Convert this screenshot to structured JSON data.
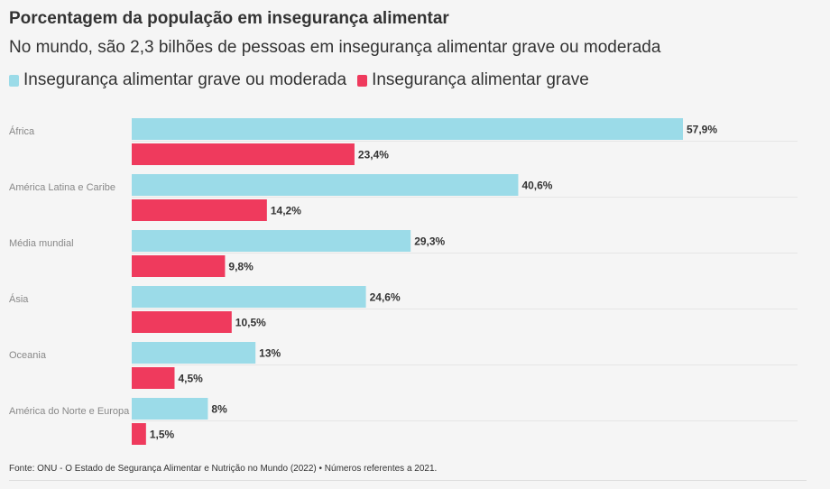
{
  "title": "Porcentagem da população em insegurança alimentar",
  "subtitle": "No mundo, são 2,3 bilhões de pessoas em insegurança alimentar grave ou moderada",
  "footer": "Fonte: ONU - O Estado de Segurança Alimentar e Nutrição no Mundo (2022) • Números referentes a 2021.",
  "colors": {
    "moderate": "#9bdbe8",
    "severe": "#ef3a5d"
  },
  "chart_data": {
    "type": "bar",
    "orientation": "horizontal",
    "title": "Porcentagem da população em insegurança alimentar",
    "subtitle": "No mundo, são 2,3 bilhões de pessoas em insegurança alimentar grave ou moderada",
    "legend_position": "top-left",
    "grid": false,
    "xlim": [
      0,
      57.9
    ],
    "categories": [
      "África",
      "América Latina e Caribe",
      "Média mundial",
      "Ásia",
      "Oceania",
      "América do Norte e Europa"
    ],
    "series": [
      {
        "name": "Insegurança alimentar grave ou moderada",
        "color": "#9bdbe8",
        "values": [
          57.9,
          40.6,
          29.3,
          24.6,
          13,
          8
        ],
        "labels": [
          "57,9%",
          "40,6%",
          "29,3%",
          "24,6%",
          "13%",
          "8%"
        ]
      },
      {
        "name": "Insegurança alimentar grave",
        "color": "#ef3a5d",
        "values": [
          23.4,
          14.2,
          9.8,
          10.5,
          4.5,
          1.5
        ],
        "labels": [
          "23,4%",
          "14,2%",
          "9,8%",
          "10,5%",
          "4,5%",
          "1,5%"
        ]
      }
    ]
  }
}
